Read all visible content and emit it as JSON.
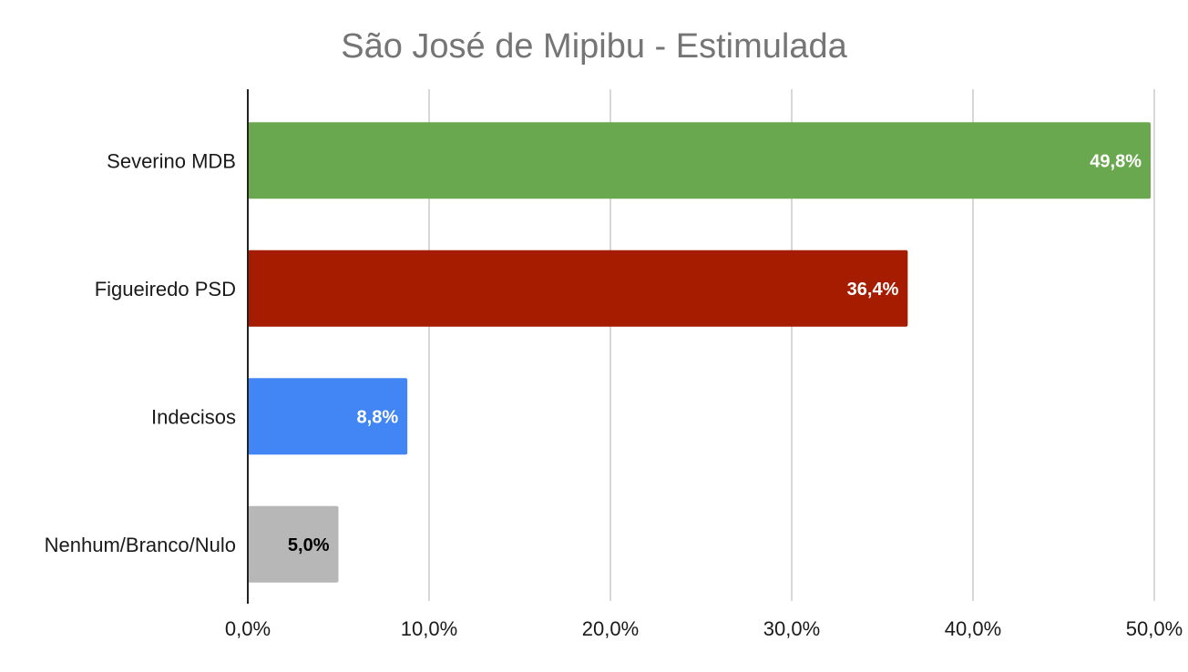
{
  "chart_data": {
    "type": "bar",
    "orientation": "horizontal",
    "title": "São José de Mipibu - Estimulada",
    "xlabel": "",
    "ylabel": "",
    "categories": [
      "Severino MDB",
      "Figueiredo PSD",
      "Indecisos",
      "Nenhum/Branco/Nulo"
    ],
    "values": [
      49.8,
      36.4,
      8.8,
      5.0
    ],
    "data_labels": [
      "49,8%",
      "36,4%",
      "8,8%",
      "5,0%"
    ],
    "colors": [
      "#6aa84f",
      "#a61c00",
      "#4285f4",
      "#b7b7b7"
    ],
    "label_colors": [
      "#ffffff",
      "#ffffff",
      "#ffffff",
      "#000000"
    ],
    "xlim": [
      0,
      50
    ],
    "xticks": [
      0,
      10,
      20,
      30,
      40,
      50
    ],
    "xtick_labels": [
      "0,0%",
      "10,0%",
      "20,0%",
      "30,0%",
      "40,0%",
      "50,0%"
    ],
    "grid": true,
    "legend": "none"
  }
}
